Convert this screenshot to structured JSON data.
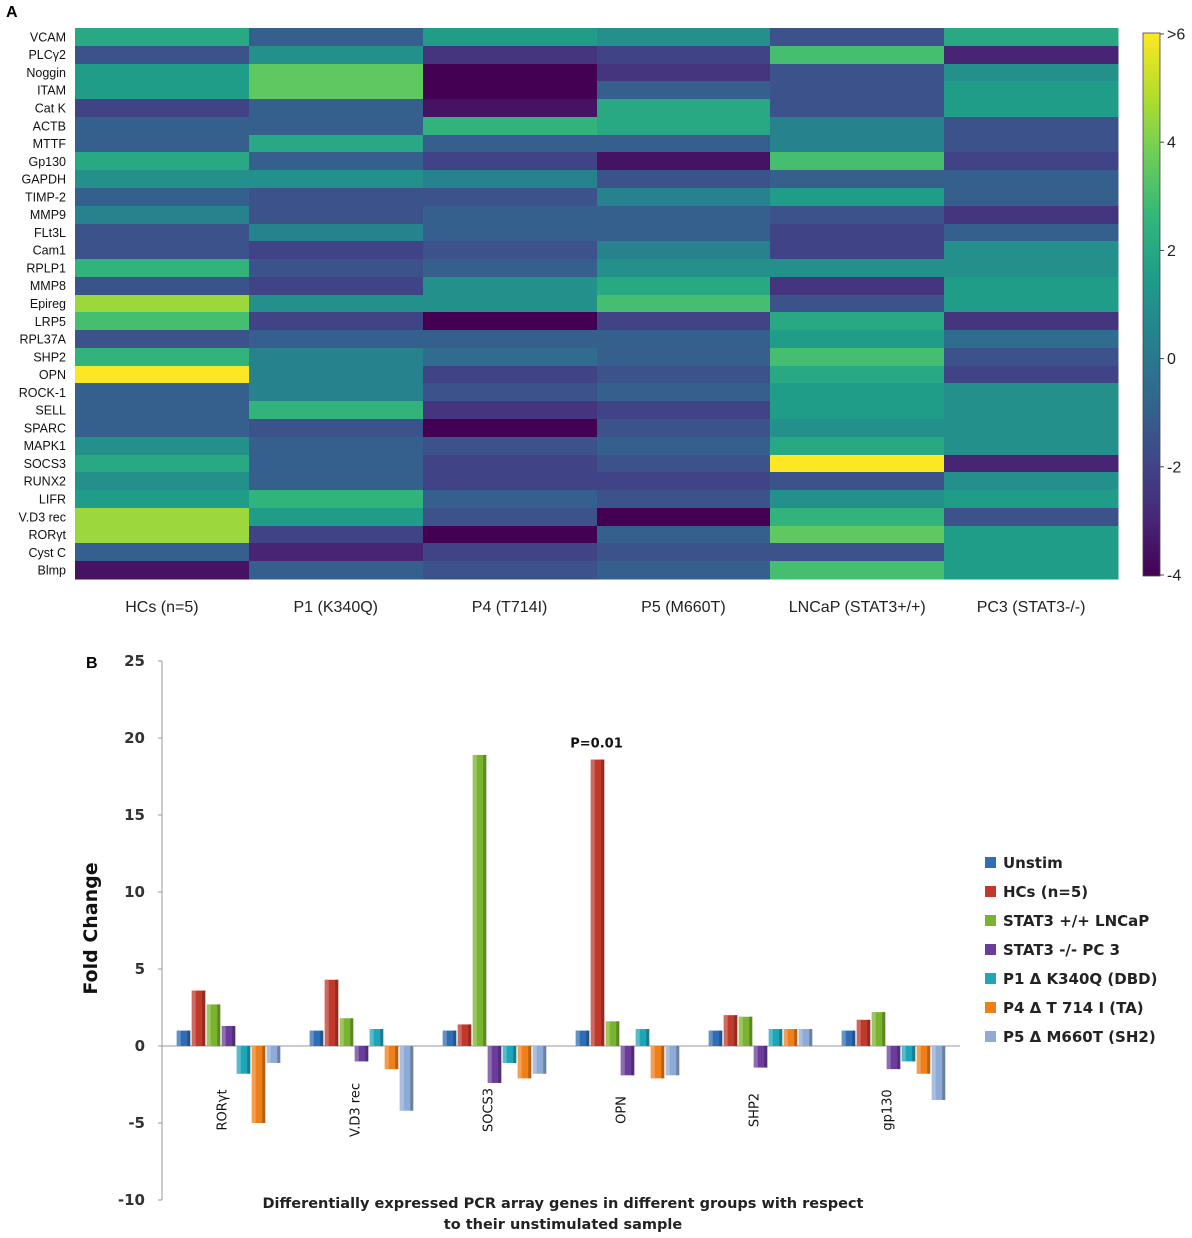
{
  "colors": {
    "viridis": [
      "#440154",
      "#482878",
      "#3e4a89",
      "#31688e",
      "#26828e",
      "#1f9e89",
      "#35b779",
      "#6ece58",
      "#b5de2b",
      "#fde725"
    ],
    "series": [
      "#2f6eb5",
      "#c0392b",
      "#7ab32e",
      "#6a3d9a",
      "#1fa5b8",
      "#ef7f1a",
      "#8eaad6"
    ]
  },
  "panel_a": {
    "letter": "A"
  },
  "panel_b": {
    "letter": "B"
  },
  "chart_data": [
    {
      "type": "heatmap",
      "title": "",
      "genes": [
        "VCAM",
        "PLCγ2",
        "Noggin",
        "ITAM",
        "Cat K",
        "ACTB",
        "MTTF",
        "Gp130",
        "GAPDH",
        "TIMP-2",
        "MMP9",
        "FLt3L",
        "Cam1",
        "RPLP1",
        "MMP8",
        "Epireg",
        "LRP5",
        "RPL37A",
        "SHP2",
        "OPN",
        "ROCK-1",
        "SELL",
        "SPARC",
        "MAPK1",
        "SOCS3",
        "RUNX2",
        "LIFR",
        "V.D3 rec",
        "RORγt",
        "Cyst C",
        "Blmp"
      ],
      "samples": [
        "HCs (n=5)",
        "P1 (K340Q)",
        "P4 (T714I)",
        "P5 (M660T)",
        "LNCaP (STAT3+/+)",
        "PC3 (STAT3-/-)"
      ],
      "values": [
        [
          2.0,
          -1.0,
          1.5,
          1.0,
          -1.5,
          2.0
        ],
        [
          -1.5,
          1.0,
          -2.5,
          -2.0,
          3.0,
          -3.0
        ],
        [
          1.5,
          3.5,
          -4.0,
          -2.5,
          -1.5,
          1.0
        ],
        [
          1.5,
          3.5,
          -4.0,
          -1.0,
          -1.5,
          1.5
        ],
        [
          -2.0,
          -1.0,
          -3.5,
          2.0,
          -1.5,
          1.5
        ],
        [
          -1.0,
          -1.0,
          2.5,
          2.0,
          0.5,
          -1.5
        ],
        [
          -1.0,
          2.0,
          -1.0,
          -1.0,
          0.5,
          -1.5
        ],
        [
          2.0,
          -1.0,
          -2.0,
          -3.5,
          3.0,
          -2.0
        ],
        [
          1.0,
          1.0,
          0.5,
          -1.5,
          -1.0,
          -1.0
        ],
        [
          -1.0,
          -1.5,
          -1.5,
          0.5,
          1.5,
          -1.0
        ],
        [
          0.5,
          -1.5,
          -1.0,
          -1.0,
          -1.5,
          -2.5
        ],
        [
          -1.5,
          0.5,
          -1.0,
          -1.0,
          -2.0,
          -1.0
        ],
        [
          -1.5,
          -2.0,
          -1.5,
          0.5,
          -2.0,
          1.0
        ],
        [
          2.5,
          -1.5,
          -1.0,
          1.0,
          1.0,
          1.0
        ],
        [
          -1.5,
          -2.0,
          1.0,
          2.0,
          -2.5,
          1.5
        ],
        [
          4.5,
          1.0,
          1.0,
          3.0,
          -1.5,
          1.5
        ],
        [
          3.0,
          -2.0,
          -4.0,
          -2.0,
          2.0,
          -2.5
        ],
        [
          -1.5,
          -1.0,
          -1.0,
          -1.0,
          1.5,
          -0.5
        ],
        [
          2.5,
          0.5,
          -0.5,
          -1.0,
          3.0,
          -1.5
        ],
        [
          6.0,
          0.5,
          -2.0,
          -1.5,
          2.0,
          -2.0
        ],
        [
          -1.0,
          0.5,
          -1.5,
          -1.0,
          1.5,
          1.0
        ],
        [
          -1.0,
          2.5,
          -2.5,
          -2.0,
          1.5,
          1.0
        ],
        [
          -1.0,
          -1.5,
          -4.0,
          -1.5,
          1.0,
          1.0
        ],
        [
          1.0,
          -1.0,
          -1.5,
          -1.0,
          2.0,
          1.0
        ],
        [
          2.0,
          -1.0,
          -2.0,
          -1.5,
          6.0,
          -3.0
        ],
        [
          1.0,
          -1.0,
          -2.0,
          -2.0,
          -1.5,
          1.0
        ],
        [
          1.5,
          2.5,
          -1.0,
          -1.5,
          1.0,
          1.5
        ],
        [
          4.5,
          1.5,
          -1.5,
          -4.0,
          2.5,
          -1.5
        ],
        [
          4.5,
          -2.0,
          -4.0,
          -1.0,
          3.5,
          1.5
        ],
        [
          -1.0,
          -3.0,
          -2.0,
          -1.5,
          -1.5,
          1.5
        ],
        [
          -3.5,
          -1.0,
          -1.5,
          -1.0,
          3.0,
          1.5
        ]
      ],
      "colorbar": {
        "ticks": [
          ">6",
          "4",
          "2",
          "0",
          "-2",
          "-4"
        ],
        "range": [
          -4,
          6
        ]
      }
    },
    {
      "type": "bar",
      "title": "",
      "ylabel": "Fold Change",
      "xlabel": "Differentially expressed PCR array genes in different groups with respect to their unstimulated sample",
      "xlabel_lines": [
        "Differentially expressed PCR array genes in different groups with respect",
        "to their unstimulated sample"
      ],
      "ylim": [
        -10,
        25
      ],
      "yticks": [
        25,
        20,
        15,
        10,
        5,
        0,
        -5,
        -10
      ],
      "categories": [
        "RORγt",
        "V.D3 rec",
        "SOCS3",
        "OPN",
        "SHP2",
        "gp130"
      ],
      "series": [
        {
          "name": "Unstim",
          "values": [
            1,
            1,
            1,
            1,
            1,
            1
          ]
        },
        {
          "name": "HCs (n=5)",
          "values": [
            3.6,
            4.3,
            1.4,
            18.6,
            2.0,
            1.7
          ]
        },
        {
          "name": "STAT3 +/+ LNCaP",
          "values": [
            2.7,
            1.8,
            18.9,
            1.6,
            1.9,
            2.2
          ]
        },
        {
          "name": "STAT3 -/- PC 3",
          "values": [
            1.3,
            -1.0,
            -2.4,
            -1.9,
            -1.4,
            -1.5
          ]
        },
        {
          "name": "P1 Δ K340Q (DBD)",
          "values": [
            -1.8,
            1.1,
            -1.1,
            1.1,
            1.1,
            -1.0
          ]
        },
        {
          "name": "P4 Δ T 714 I (TA)",
          "values": [
            -5.0,
            -1.5,
            -2.1,
            -2.1,
            1.1,
            -1.8
          ]
        },
        {
          "name": "P5 Δ M660T (SH2)",
          "values": [
            -1.1,
            -4.2,
            -1.8,
            -1.9,
            1.1,
            -3.5
          ]
        }
      ],
      "annotations": [
        {
          "category": "OPN",
          "text": "P=0.01"
        }
      ],
      "legend": "right"
    }
  ]
}
